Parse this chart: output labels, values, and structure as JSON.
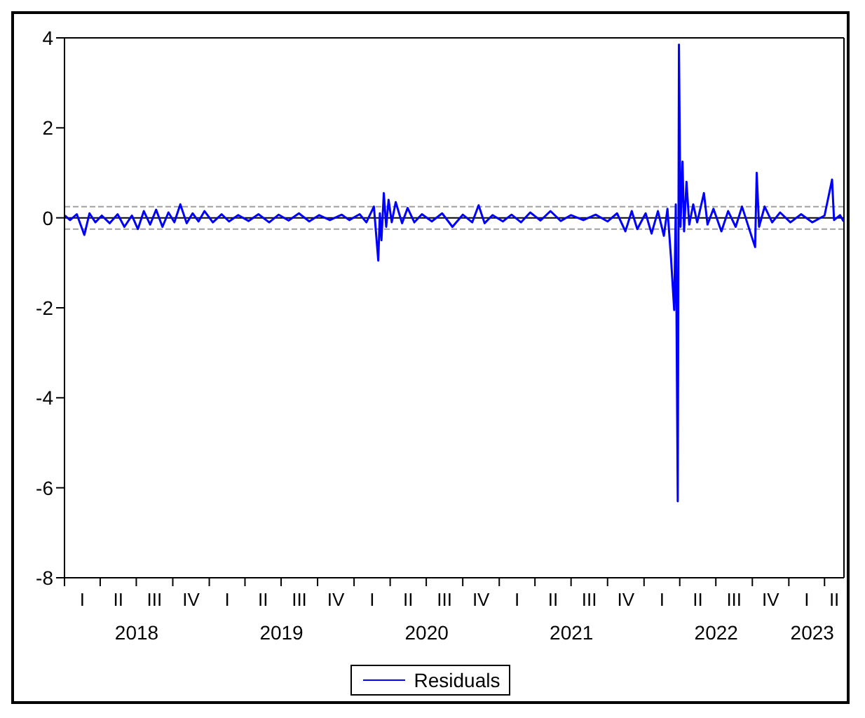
{
  "chart_data": {
    "type": "line",
    "legend": "bottom",
    "marker": "none",
    "line_style": "solid",
    "xlim": [
      "2018-01-01",
      "2023-05-20"
    ],
    "ylim": [
      -8,
      4
    ],
    "yticks": [
      -8,
      -6,
      -4,
      -2,
      0,
      2,
      4
    ],
    "xticks": [
      {
        "value": "2018-01-01",
        "label": null
      },
      {
        "value": "2018-04-01",
        "label": null
      },
      {
        "value": "2018-07-01",
        "label": null
      },
      {
        "value": "2018-10-01",
        "label": null
      },
      {
        "value": "2019-01-01",
        "label": null
      },
      {
        "value": "2019-04-01",
        "label": null
      },
      {
        "value": "2019-07-01",
        "label": null
      },
      {
        "value": "2019-10-01",
        "label": null
      },
      {
        "value": "2020-01-01",
        "label": null
      },
      {
        "value": "2020-04-01",
        "label": null
      },
      {
        "value": "2020-07-01",
        "label": null
      },
      {
        "value": "2020-10-01",
        "label": null
      },
      {
        "value": "2021-01-01",
        "label": null
      },
      {
        "value": "2021-04-01",
        "label": null
      },
      {
        "value": "2021-07-01",
        "label": null
      },
      {
        "value": "2021-10-01",
        "label": null
      },
      {
        "value": "2022-01-01",
        "label": null
      },
      {
        "value": "2022-04-01",
        "label": null
      },
      {
        "value": "2022-07-01",
        "label": null
      },
      {
        "value": "2022-10-01",
        "label": null
      },
      {
        "value": "2023-01-01",
        "label": null
      },
      {
        "value": "2023-04-01",
        "label": null
      },
      {
        "value": "2018-07-02",
        "label": "2018"
      },
      {
        "value": "2019-07-02",
        "label": "2019"
      },
      {
        "value": "2020-07-02",
        "label": "2020"
      },
      {
        "value": "2021-07-02",
        "label": "2021"
      },
      {
        "value": "2022-07-02",
        "label": "2022"
      },
      {
        "value": "2023-03-01",
        "label": "2023"
      }
    ],
    "annotations": [
      "I",
      "II",
      "III",
      "IV",
      "I",
      "II",
      "III",
      "IV",
      "I",
      "II",
      "III",
      "IV",
      "I",
      "II",
      "III",
      "IV",
      "I",
      "II",
      "III",
      "IV",
      "I",
      "II"
    ],
    "ref_lines": [
      {
        "axis": "y",
        "value": 0,
        "color": "#000000",
        "line_style": "solid"
      },
      {
        "axis": "y",
        "value": 0.25,
        "color": "#a0a0a0",
        "line_style": "dashed"
      },
      {
        "axis": "y",
        "value": -0.25,
        "color": "#a0a0a0",
        "line_style": "dashed"
      }
    ],
    "series": [
      {
        "name": "Residuals",
        "color": "#0000ff",
        "x": [
          "2018-01-02",
          "2018-01-15",
          "2018-02-01",
          "2018-02-20",
          "2018-03-05",
          "2018-03-20",
          "2018-04-05",
          "2018-04-25",
          "2018-05-15",
          "2018-06-01",
          "2018-06-20",
          "2018-07-05",
          "2018-07-20",
          "2018-08-05",
          "2018-08-20",
          "2018-09-05",
          "2018-09-20",
          "2018-10-05",
          "2018-10-20",
          "2018-11-05",
          "2018-11-20",
          "2018-12-05",
          "2018-12-20",
          "2019-01-10",
          "2019-02-01",
          "2019-02-20",
          "2019-03-15",
          "2019-04-10",
          "2019-05-05",
          "2019-06-01",
          "2019-06-25",
          "2019-07-20",
          "2019-08-15",
          "2019-09-10",
          "2019-10-05",
          "2019-11-01",
          "2019-12-01",
          "2019-12-20",
          "2020-01-15",
          "2020-02-01",
          "2020-02-20",
          "2020-03-02",
          "2020-03-06",
          "2020-03-10",
          "2020-03-16",
          "2020-03-22",
          "2020-03-28",
          "2020-04-05",
          "2020-04-15",
          "2020-05-01",
          "2020-05-15",
          "2020-06-01",
          "2020-06-20",
          "2020-07-15",
          "2020-08-10",
          "2020-09-05",
          "2020-10-01",
          "2020-10-25",
          "2020-11-10",
          "2020-11-25",
          "2020-12-15",
          "2021-01-10",
          "2021-02-01",
          "2021-02-25",
          "2021-03-20",
          "2021-04-15",
          "2021-05-10",
          "2021-06-05",
          "2021-07-01",
          "2021-08-01",
          "2021-09-01",
          "2021-10-01",
          "2021-10-25",
          "2021-11-15",
          "2021-12-01",
          "2021-12-15",
          "2022-01-05",
          "2022-01-20",
          "2022-02-05",
          "2022-02-20",
          "2022-03-01",
          "2022-03-10",
          "2022-03-18",
          "2022-03-22",
          "2022-03-27",
          "2022-03-30",
          "2022-04-03",
          "2022-04-08",
          "2022-04-12",
          "2022-04-18",
          "2022-04-25",
          "2022-05-05",
          "2022-05-15",
          "2022-06-01",
          "2022-06-10",
          "2022-06-25",
          "2022-07-15",
          "2022-08-01",
          "2022-08-20",
          "2022-09-05",
          "2022-09-25",
          "2022-10-08",
          "2022-10-12",
          "2022-10-18",
          "2022-11-01",
          "2022-11-20",
          "2022-12-10",
          "2023-01-05",
          "2023-02-01",
          "2023-03-01",
          "2023-04-01",
          "2023-04-20",
          "2023-04-25",
          "2023-05-10",
          "2023-05-19"
        ],
        "values": [
          0.05,
          -0.05,
          0.08,
          -0.38,
          0.1,
          -0.1,
          0.05,
          -0.12,
          0.08,
          -0.2,
          0.05,
          -0.25,
          0.15,
          -0.15,
          0.18,
          -0.2,
          0.12,
          -0.1,
          0.3,
          -0.12,
          0.1,
          -0.08,
          0.15,
          -0.1,
          0.08,
          -0.08,
          0.06,
          -0.07,
          0.08,
          -0.1,
          0.07,
          -0.06,
          0.1,
          -0.08,
          0.06,
          -0.05,
          0.07,
          -0.05,
          0.08,
          -0.1,
          0.25,
          -0.95,
          0.1,
          -0.5,
          0.55,
          -0.2,
          0.4,
          -0.1,
          0.35,
          -0.12,
          0.22,
          -0.1,
          0.08,
          -0.08,
          0.1,
          -0.2,
          0.07,
          -0.1,
          0.28,
          -0.12,
          0.06,
          -0.08,
          0.07,
          -0.1,
          0.12,
          -0.06,
          0.15,
          -0.07,
          0.06,
          -0.05,
          0.07,
          -0.08,
          0.1,
          -0.3,
          0.15,
          -0.25,
          0.1,
          -0.35,
          0.15,
          -0.4,
          0.2,
          -0.9,
          -2.05,
          0.3,
          -6.3,
          3.85,
          -0.2,
          1.25,
          -0.3,
          0.8,
          -0.15,
          0.3,
          -0.1,
          0.55,
          -0.15,
          0.2,
          -0.3,
          0.15,
          -0.2,
          0.25,
          -0.3,
          -0.65,
          1.0,
          -0.2,
          0.25,
          -0.1,
          0.12,
          -0.1,
          0.08,
          -0.1,
          0.05,
          0.85,
          -0.05,
          0.06,
          -0.08
        ]
      }
    ]
  }
}
